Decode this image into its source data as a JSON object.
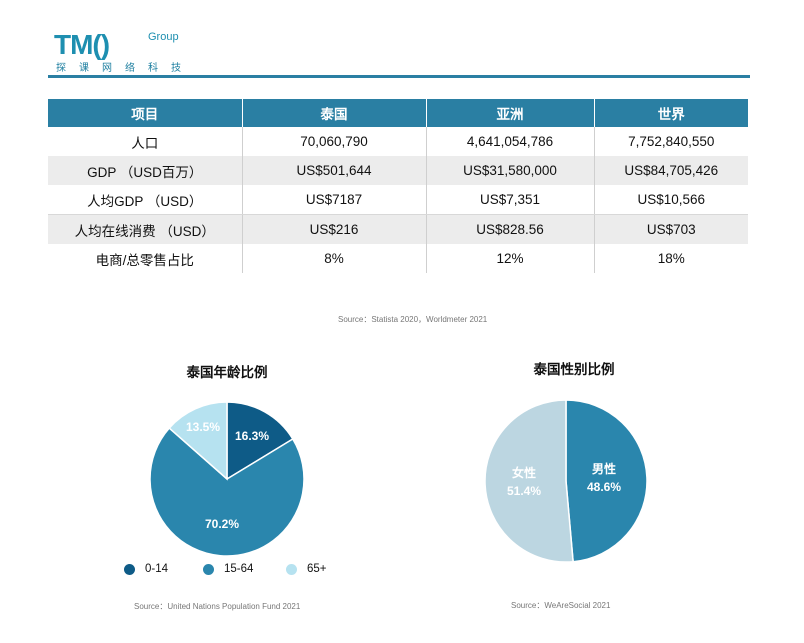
{
  "logo": {
    "text": "TM()",
    "group": "Group",
    "sub": "探课网络科技"
  },
  "table": {
    "headers": [
      "项目",
      "泰国",
      "亚洲",
      "世界"
    ],
    "rows": [
      [
        "人口",
        "70,060,790",
        "4,641,054,786",
        "7,752,840,550"
      ],
      [
        "GDP （USD百万）",
        "US$501,644",
        "US$31,580,000",
        "US$84,705,426"
      ],
      [
        "人均GDP （USD）",
        "US$7187",
        "US$7,351",
        "US$10,566"
      ],
      [
        "人均在线消费 （USD）",
        "US$216",
        "US$828.56",
        "US$703"
      ],
      [
        "电商/总零售占比",
        "8%",
        "12%",
        "18%"
      ]
    ]
  },
  "table_source": "Source：Statista 2020，Worldmeter 2021",
  "chart_data": [
    {
      "type": "pie",
      "title": "泰国年龄比例",
      "categories": [
        "0-14",
        "15-64",
        "65+"
      ],
      "values": [
        16.3,
        70.2,
        13.5
      ],
      "labels": [
        "16.3%",
        "70.2%",
        "13.5%"
      ],
      "colors": [
        "#0e5b87",
        "#2a86ad",
        "#b6e2f0"
      ],
      "label_colors": [
        "#ffffff",
        "#ffffff",
        "#ffffff"
      ],
      "legend": "bottom",
      "source": "Source：United Nations Population Fund 2021"
    },
    {
      "type": "pie",
      "title": "泰国性别比例",
      "categories": [
        "男性",
        "女性"
      ],
      "values": [
        48.6,
        51.4
      ],
      "labels": [
        "48.6%",
        "51.4%"
      ],
      "colors": [
        "#2a86ad",
        "#bcd6e1"
      ],
      "label_colors": [
        "#ffffff",
        "#ffffff"
      ],
      "legend": "none",
      "source": "Source：WeAreSocial 2021"
    }
  ]
}
